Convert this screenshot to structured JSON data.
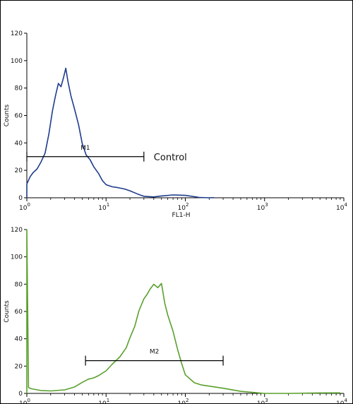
{
  "chart_data": [
    {
      "type": "line",
      "ylabel": "Counts",
      "xlabel": "FL1-H",
      "xscale": "log",
      "xlim": [
        1,
        10000
      ],
      "ylim": [
        0,
        120
      ],
      "yticks": [
        "0",
        "20",
        "40",
        "60",
        "80",
        "100",
        "120"
      ],
      "xticks": [
        {
          "base": "10",
          "exp": "0"
        },
        {
          "base": "10",
          "exp": "1"
        },
        {
          "base": "10",
          "exp": "2"
        },
        {
          "base": "10",
          "exp": "3"
        },
        {
          "base": "10",
          "exp": "4"
        }
      ],
      "color": "#1f3c8c",
      "marker": {
        "name": "M1",
        "x": [
          1,
          30
        ],
        "y": 30
      },
      "annotation": "Control",
      "series": [
        {
          "x": [
            1.0,
            1.1,
            1.2,
            1.35,
            1.5,
            1.7,
            1.9,
            2.1,
            2.3,
            2.5,
            2.7,
            2.9,
            3.1,
            3.3,
            3.6,
            4.0,
            4.5,
            5.0,
            5.6,
            6.3,
            7.0,
            8.0,
            9.0,
            10,
            12,
            14,
            17,
            20,
            25,
            30,
            40,
            50,
            70,
            100,
            150,
            200,
            230
          ],
          "y": [
            10,
            14,
            17,
            21,
            27,
            34,
            47,
            62,
            73,
            83,
            82,
            89,
            95,
            84,
            73,
            64,
            54,
            41,
            32,
            27,
            21,
            17,
            13,
            11,
            9,
            7,
            5,
            4,
            3,
            2.5,
            1.8,
            1.2,
            0.7,
            0.5,
            0.3,
            0.2,
            0.1
          ]
        }
      ]
    },
    {
      "type": "line",
      "ylabel": "Counts",
      "xlabel": "",
      "xscale": "log",
      "xlim": [
        1,
        10000
      ],
      "ylim": [
        0,
        120
      ],
      "yticks": [
        "0",
        "20",
        "40",
        "60",
        "80",
        "100",
        "120"
      ],
      "xticks": [
        {
          "base": "10",
          "exp": "0"
        },
        {
          "base": "10",
          "exp": "1"
        },
        {
          "base": "10",
          "exp": "2"
        },
        {
          "base": "10",
          "exp": "3"
        },
        {
          "base": "10",
          "exp": "4"
        }
      ],
      "color": "#5aa02c",
      "marker": {
        "name": "M2",
        "x": [
          5.5,
          300
        ],
        "y": 24
      },
      "annotation": "",
      "series": [
        {
          "x": [
            1.0,
            1.05,
            1.15,
            1.5,
            2,
            3,
            4,
            5,
            6,
            7,
            8,
            10,
            12,
            15,
            18,
            20,
            23,
            26,
            30,
            33,
            36,
            40,
            45,
            50,
            55,
            60,
            70,
            80,
            90,
            100,
            130,
            160,
            200,
            300,
            500,
            1000,
            2000,
            5000,
            9000
          ],
          "y": [
            120,
            3,
            2,
            2,
            3,
            4,
            5,
            7,
            9,
            11,
            14,
            18,
            22,
            26,
            32,
            40,
            50,
            62,
            70,
            72,
            75,
            79,
            78,
            82,
            67,
            57,
            44,
            31,
            22,
            15,
            9,
            6,
            4,
            2.5,
            1.5,
            1,
            0.8,
            0.5,
            0.4
          ]
        }
      ]
    }
  ]
}
